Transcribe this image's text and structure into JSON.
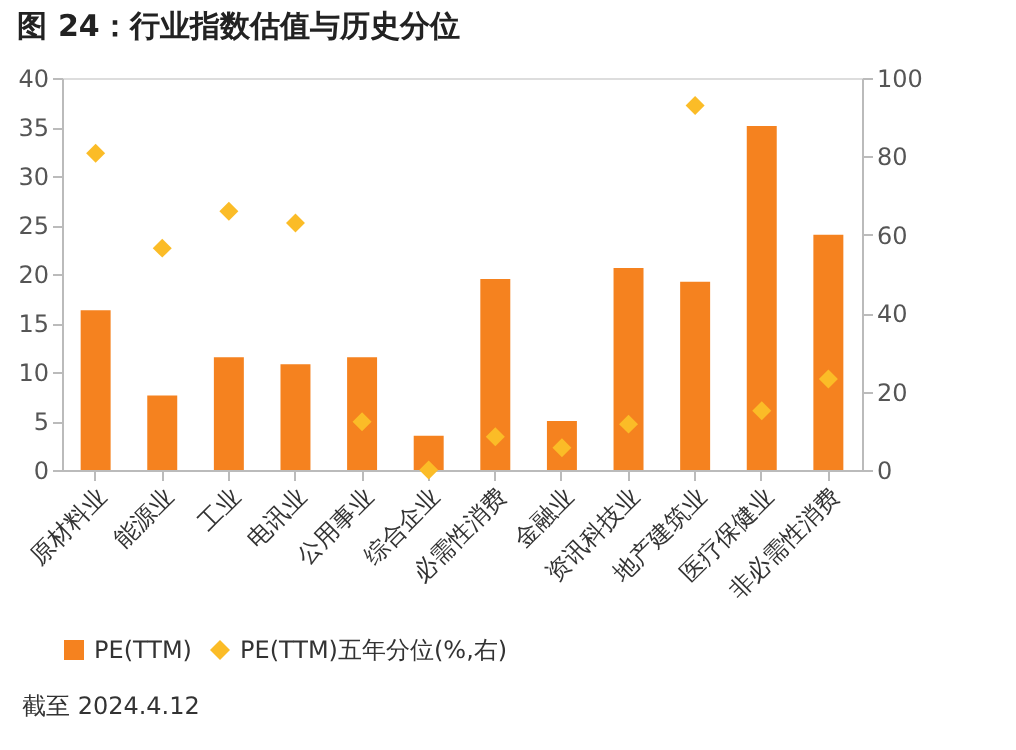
{
  "chart_data": {
    "type": "bar",
    "title": "图 24：行业指数估值与历史分位",
    "annotations": [
      "截至 2024.4.12"
    ],
    "categories": [
      "原材料业",
      "能源业",
      "工业",
      "电讯业",
      "公用事业",
      "综合企业",
      "必需性消费",
      "金融业",
      "资讯科技业",
      "地产建筑业",
      "医疗保健业",
      "非必需性消费"
    ],
    "series": [
      {
        "name": "PE(TTM)",
        "color": "#f5821f",
        "values": [
          16.3,
          7.6,
          11.5,
          10.8,
          11.5,
          3.5,
          19.5,
          5.0,
          20.6,
          19.2,
          35.1,
          24.0
        ]
      },
      {
        "name": "PE(TTM)五年分位(%,右)",
        "color": "#fbbc27",
        "type": "scatter",
        "marker": "diamond",
        "axis": "y2",
        "values": [
          80.8,
          56.6,
          66,
          63,
          12.3,
          0,
          8.5,
          5.7,
          11.7,
          93,
          15.1,
          23.2
        ]
      }
    ],
    "ylim": [
      0,
      40
    ],
    "yticks": [
      0,
      5,
      10,
      15,
      20,
      25,
      30,
      35,
      40
    ],
    "y2lim": [
      0,
      100
    ],
    "y2ticks": [
      0,
      20,
      40,
      60,
      80,
      100
    ],
    "legend": "bottom",
    "grid": false
  }
}
